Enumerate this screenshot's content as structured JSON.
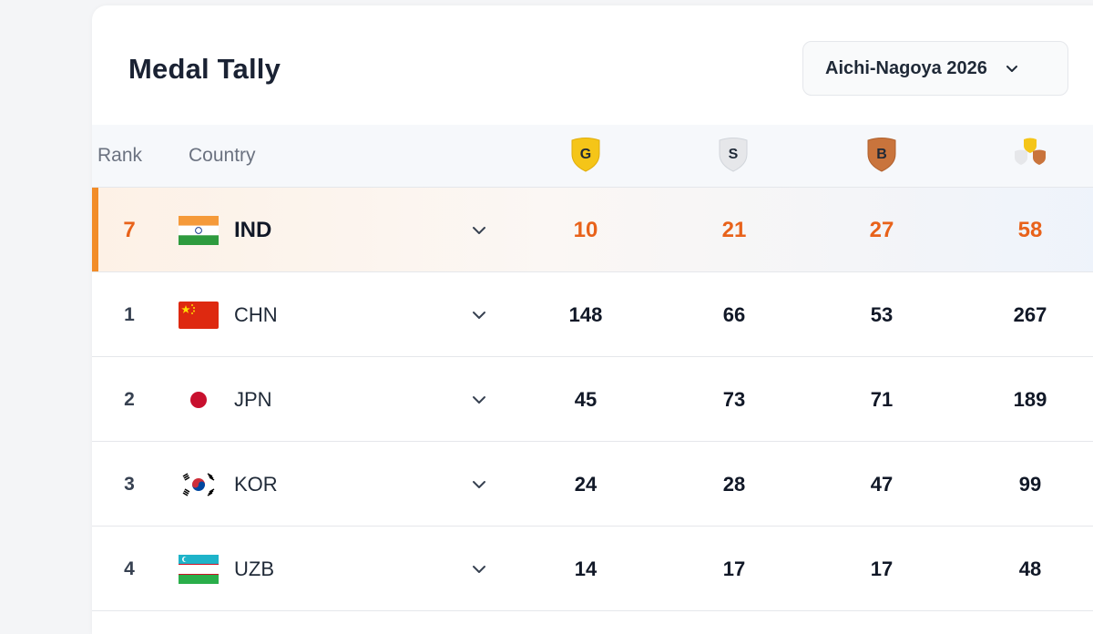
{
  "header": {
    "title": "Medal Tally",
    "edition_selector": "Aichi-Nagoya 2026"
  },
  "columns": {
    "rank": "Rank",
    "country": "Country",
    "gold_icon_label": "G",
    "silver_icon_label": "S",
    "bronze_icon_label": "B"
  },
  "highlight_row": {
    "rank": "7",
    "code": "IND",
    "flag": "flag-india",
    "gold": "10",
    "silver": "21",
    "bronze": "27",
    "total": "58"
  },
  "rows": [
    {
      "rank": "1",
      "code": "CHN",
      "flag": "flag-china",
      "gold": "148",
      "silver": "66",
      "bronze": "53",
      "total": "267"
    },
    {
      "rank": "2",
      "code": "JPN",
      "flag": "flag-japan",
      "gold": "45",
      "silver": "73",
      "bronze": "71",
      "total": "189"
    },
    {
      "rank": "3",
      "code": "KOR",
      "flag": "flag-korea",
      "gold": "24",
      "silver": "28",
      "bronze": "47",
      "total": "99"
    },
    {
      "rank": "4",
      "code": "UZB",
      "flag": "flag-uzbekistan",
      "gold": "14",
      "silver": "17",
      "bronze": "17",
      "total": "48"
    }
  ],
  "colors": {
    "accent": "#e8621a",
    "highlight_bar": "#f28c28",
    "gold": "#f5c518",
    "silver": "#e5e7eb",
    "bronze": "#c9743c"
  }
}
